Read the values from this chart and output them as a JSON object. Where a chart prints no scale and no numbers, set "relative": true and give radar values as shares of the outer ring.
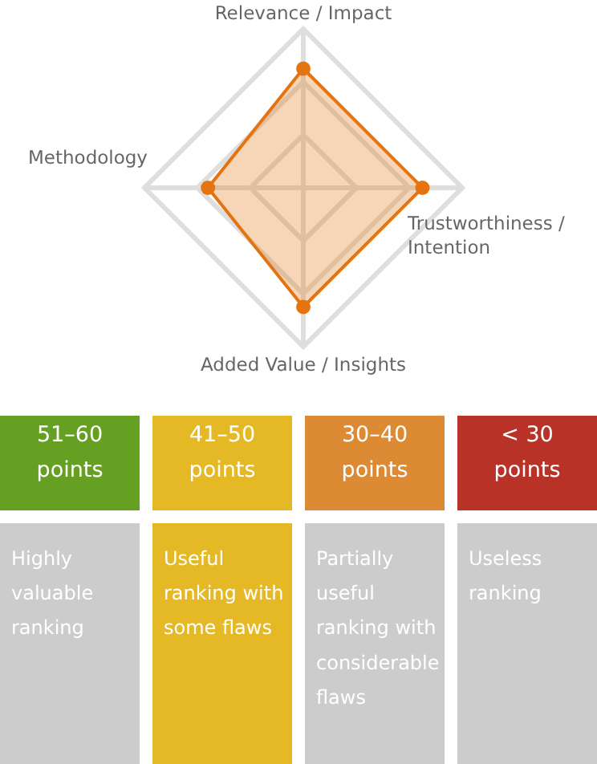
{
  "chart_data": [
    {
      "type": "radar",
      "relative": true,
      "grid": true,
      "marker": "circle",
      "categories": [
        "Relevance / Impact",
        "Trustworthiness / Intention",
        "Added Value / Insights",
        "Methodology"
      ],
      "series": [
        {
          "color": "#e5730f",
          "values": [
            0.75,
            0.75,
            0.75,
            0.6
          ]
        }
      ]
    },
    {
      "type": "other",
      "categories": [
        "51–60 points",
        "41–50 points",
        "30–40 points",
        "< 30 points"
      ],
      "colors": [
        "#65a023",
        "#e5b925",
        "#dc8b34",
        "#b93228",
        "#cccccc",
        "#e5b925",
        "#cccccc",
        "#cccccc"
      ],
      "annotations": [
        "Highly valuable ranking",
        "Useful ranking with some flaws",
        "Partially useful ranking with considerable flaws",
        "Useless ranking"
      ]
    }
  ]
}
